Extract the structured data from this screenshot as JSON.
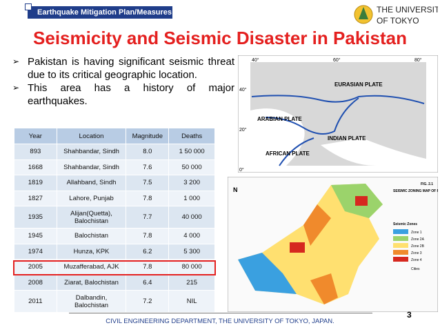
{
  "header": {
    "tag": "Earthquake Mitigation Plan/Measures",
    "logo_line1": "THE UNIVERSITY",
    "logo_line2": "OF TOKYO"
  },
  "title": "Seismicity and Seismic Disaster in Pakistan",
  "bullets": [
    "Pakistan is having significant seismic threat due to its critical geographic location.",
    "This area has a history of major earthquakes."
  ],
  "table": {
    "columns": [
      "Year",
      "Location",
      "Magnitude",
      "Deaths"
    ],
    "rows": [
      [
        "893",
        "Shahbandar, Sindh",
        "8.0",
        "1 50 000"
      ],
      [
        "1668",
        "Shahbandar, Sindh",
        "7.6",
        "50 000"
      ],
      [
        "1819",
        "Allahband, Sindh",
        "7.5",
        "3 200"
      ],
      [
        "1827",
        "Lahore, Punjab",
        "7.8",
        "1 000"
      ],
      [
        "1935",
        "Alijan(Quetta), Balochistan",
        "7.7",
        "40 000"
      ],
      [
        "1945",
        "Balochistan",
        "7.8",
        "4 000"
      ],
      [
        "1974",
        "Hunza, KPK",
        "6.2",
        "5 300"
      ],
      [
        "2005",
        "Muzafferabad, AJK",
        "7.8",
        "80 000"
      ],
      [
        "2008",
        "Ziarat, Balochistan",
        "6.4",
        "215"
      ],
      [
        "2011",
        "Dalbandin, Balochistan",
        "7.2",
        "NIL"
      ]
    ]
  },
  "plate_map": {
    "top_labels": [
      "40°",
      "60°",
      "80°"
    ],
    "left_labels": [
      "40°",
      "20°",
      "0°"
    ],
    "plates": [
      "EURASIAN PLATE",
      "ARABIAN PLATE",
      "INDIAN PLATE",
      "AFRICAN PLATE"
    ]
  },
  "zoning_map": {
    "title": "SEISMIC ZONING MAP OF PAKISTAN",
    "fig": "FIG. 2.1",
    "legend_title": "Seismic Zones",
    "zones": [
      "Zone 1",
      "Zone 2A",
      "Zone 2B",
      "Zone 3",
      "Zone 4"
    ],
    "cities": "Cities",
    "north": "N"
  },
  "footer": {
    "text": "CIVIL ENGINEERING DEPARTMENT, THE UNIVERSITY OF TOKYO, JAPAN.",
    "page": "3"
  }
}
